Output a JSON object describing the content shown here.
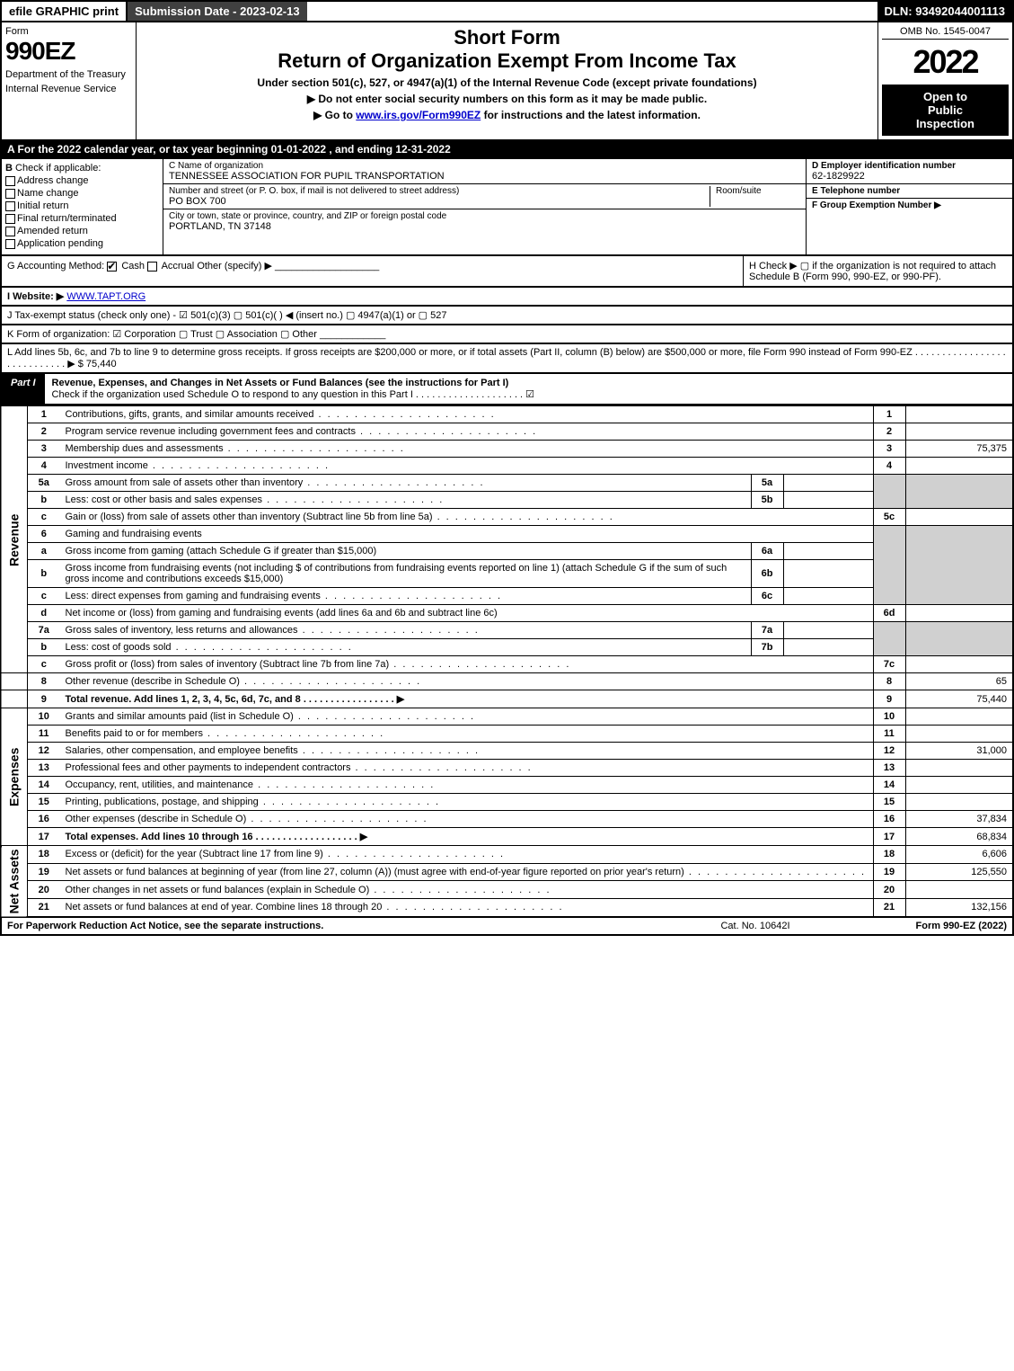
{
  "top_bar": {
    "efile": "efile GRAPHIC print",
    "submission_date_label": "Submission Date - 2023-02-13",
    "dln": "DLN: 93492044001113"
  },
  "header": {
    "form_label": "Form",
    "form_number": "990EZ",
    "dept": "Department of the Treasury",
    "irs": "Internal Revenue Service",
    "short_form": "Short Form",
    "return_title": "Return of Organization Exempt From Income Tax",
    "subtitle": "Under section 501(c), 527, or 4947(a)(1) of the Internal Revenue Code (except private foundations)",
    "instr1": "▶ Do not enter social security numbers on this form as it may be made public.",
    "instr2_pre": "▶ Go to ",
    "instr2_link": "www.irs.gov/Form990EZ",
    "instr2_post": " for instructions and the latest information.",
    "omb": "OMB No. 1545-0047",
    "year": "2022",
    "open_line1": "Open to",
    "open_line2": "Public",
    "open_line3": "Inspection"
  },
  "section_a": "A  For the 2022 calendar year, or tax year beginning 01-01-2022 , and ending 12-31-2022",
  "section_b": {
    "letter": "B",
    "title": "Check if applicable:",
    "items": [
      "Address change",
      "Name change",
      "Initial return",
      "Final return/terminated",
      "Amended return",
      "Application pending"
    ]
  },
  "section_c": {
    "name_label": "C Name of organization",
    "name": "TENNESSEE ASSOCIATION FOR PUPIL TRANSPORTATION",
    "addr_label": "Number and street (or P. O. box, if mail is not delivered to street address)",
    "room_label": "Room/suite",
    "addr": "PO BOX 700",
    "city_label": "City or town, state or province, country, and ZIP or foreign postal code",
    "city": "PORTLAND, TN  37148"
  },
  "section_d": {
    "ein_label": "D Employer identification number",
    "ein": "62-1829922",
    "tel_label": "E Telephone number",
    "tel": "",
    "group_label": "F Group Exemption Number  ▶",
    "group": ""
  },
  "row_g": {
    "label": "G Accounting Method:",
    "cash": "Cash",
    "accrual": "Accrual",
    "other": "Other (specify) ▶",
    "h_text": "H  Check ▶  ▢  if the organization is not required to attach Schedule B (Form 990, 990-EZ, or 990-PF)."
  },
  "row_i": {
    "label": "I Website: ▶",
    "link": "WWW.TAPT.ORG"
  },
  "row_j": {
    "text": "J Tax-exempt status (check only one) - ☑ 501(c)(3) ▢ 501(c)(  ) ◀ (insert no.) ▢ 4947(a)(1) or ▢ 527"
  },
  "row_k": {
    "text": "K Form of organization:  ☑ Corporation  ▢ Trust  ▢ Association  ▢ Other"
  },
  "row_l": {
    "text": "L Add lines 5b, 6c, and 7b to line 9 to determine gross receipts. If gross receipts are $200,000 or more, or if total assets (Part II, column (B) below) are $500,000 or more, file Form 990 instead of Form 990-EZ .  .  .  .  .  .  .  .  .  .  .  .  .  .  .  .  .  .  .  .  .  .  .  .  .  .  .  . ▶ $ 75,440"
  },
  "part1": {
    "tab": "Part I",
    "title": "Revenue, Expenses, and Changes in Net Assets or Fund Balances (see the instructions for Part I)",
    "check_text": "Check if the organization used Schedule O to respond to any question in this Part I .  .  .  .  .  .  .  .  .  .  .  .  .  .  .  .  .  .  .  . ☑"
  },
  "side_labels": {
    "revenue": "Revenue",
    "expenses": "Expenses",
    "net_assets": "Net Assets"
  },
  "lines": {
    "l1": {
      "num": "1",
      "desc": "Contributions, gifts, grants, and similar amounts received",
      "col": "1",
      "val": ""
    },
    "l2": {
      "num": "2",
      "desc": "Program service revenue including government fees and contracts",
      "col": "2",
      "val": ""
    },
    "l3": {
      "num": "3",
      "desc": "Membership dues and assessments",
      "col": "3",
      "val": "75,375"
    },
    "l4": {
      "num": "4",
      "desc": "Investment income",
      "col": "4",
      "val": ""
    },
    "l5a": {
      "num": "5a",
      "desc": "Gross amount from sale of assets other than inventory",
      "sub": "5a",
      "subval": ""
    },
    "l5b": {
      "num": "b",
      "desc": "Less: cost or other basis and sales expenses",
      "sub": "5b",
      "subval": ""
    },
    "l5c": {
      "num": "c",
      "desc": "Gain or (loss) from sale of assets other than inventory (Subtract line 5b from line 5a)",
      "col": "5c",
      "val": ""
    },
    "l6": {
      "num": "6",
      "desc": "Gaming and fundraising events"
    },
    "l6a": {
      "num": "a",
      "desc": "Gross income from gaming (attach Schedule G if greater than $15,000)",
      "sub": "6a",
      "subval": ""
    },
    "l6b": {
      "num": "b",
      "desc": "Gross income from fundraising events (not including $               of contributions from fundraising events reported on line 1) (attach Schedule G if the sum of such gross income and contributions exceeds $15,000)",
      "sub": "6b",
      "subval": ""
    },
    "l6c": {
      "num": "c",
      "desc": "Less: direct expenses from gaming and fundraising events",
      "sub": "6c",
      "subval": ""
    },
    "l6d": {
      "num": "d",
      "desc": "Net income or (loss) from gaming and fundraising events (add lines 6a and 6b and subtract line 6c)",
      "col": "6d",
      "val": ""
    },
    "l7a": {
      "num": "7a",
      "desc": "Gross sales of inventory, less returns and allowances",
      "sub": "7a",
      "subval": ""
    },
    "l7b": {
      "num": "b",
      "desc": "Less: cost of goods sold",
      "sub": "7b",
      "subval": ""
    },
    "l7c": {
      "num": "c",
      "desc": "Gross profit or (loss) from sales of inventory (Subtract line 7b from line 7a)",
      "col": "7c",
      "val": ""
    },
    "l8": {
      "num": "8",
      "desc": "Other revenue (describe in Schedule O)",
      "col": "8",
      "val": "65"
    },
    "l9": {
      "num": "9",
      "desc": "Total revenue. Add lines 1, 2, 3, 4, 5c, 6d, 7c, and 8   .   .   .   .   .   .   .   .   .   .   .   .   .   .   .   .   . ▶",
      "col": "9",
      "val": "75,440",
      "bold": true
    },
    "l10": {
      "num": "10",
      "desc": "Grants and similar amounts paid (list in Schedule O)",
      "col": "10",
      "val": ""
    },
    "l11": {
      "num": "11",
      "desc": "Benefits paid to or for members",
      "col": "11",
      "val": ""
    },
    "l12": {
      "num": "12",
      "desc": "Salaries, other compensation, and employee benefits",
      "col": "12",
      "val": "31,000"
    },
    "l13": {
      "num": "13",
      "desc": "Professional fees and other payments to independent contractors",
      "col": "13",
      "val": ""
    },
    "l14": {
      "num": "14",
      "desc": "Occupancy, rent, utilities, and maintenance",
      "col": "14",
      "val": ""
    },
    "l15": {
      "num": "15",
      "desc": "Printing, publications, postage, and shipping",
      "col": "15",
      "val": ""
    },
    "l16": {
      "num": "16",
      "desc": "Other expenses (describe in Schedule O)",
      "col": "16",
      "val": "37,834"
    },
    "l17": {
      "num": "17",
      "desc": "Total expenses. Add lines 10 through 16     .   .   .   .   .   .   .   .   .   .   .   .   .   .   .   .   .   .   . ▶",
      "col": "17",
      "val": "68,834",
      "bold": true
    },
    "l18": {
      "num": "18",
      "desc": "Excess or (deficit) for the year (Subtract line 17 from line 9)",
      "col": "18",
      "val": "6,606"
    },
    "l19": {
      "num": "19",
      "desc": "Net assets or fund balances at beginning of year (from line 27, column (A)) (must agree with end-of-year figure reported on prior year's return)",
      "col": "19",
      "val": "125,550"
    },
    "l20": {
      "num": "20",
      "desc": "Other changes in net assets or fund balances (explain in Schedule O)",
      "col": "20",
      "val": ""
    },
    "l21": {
      "num": "21",
      "desc": "Net assets or fund balances at end of year. Combine lines 18 through 20",
      "col": "21",
      "val": "132,156"
    }
  },
  "footer": {
    "left": "For Paperwork Reduction Act Notice, see the separate instructions.",
    "mid": "Cat. No. 10642I",
    "right": "Form 990-EZ (2022)"
  }
}
